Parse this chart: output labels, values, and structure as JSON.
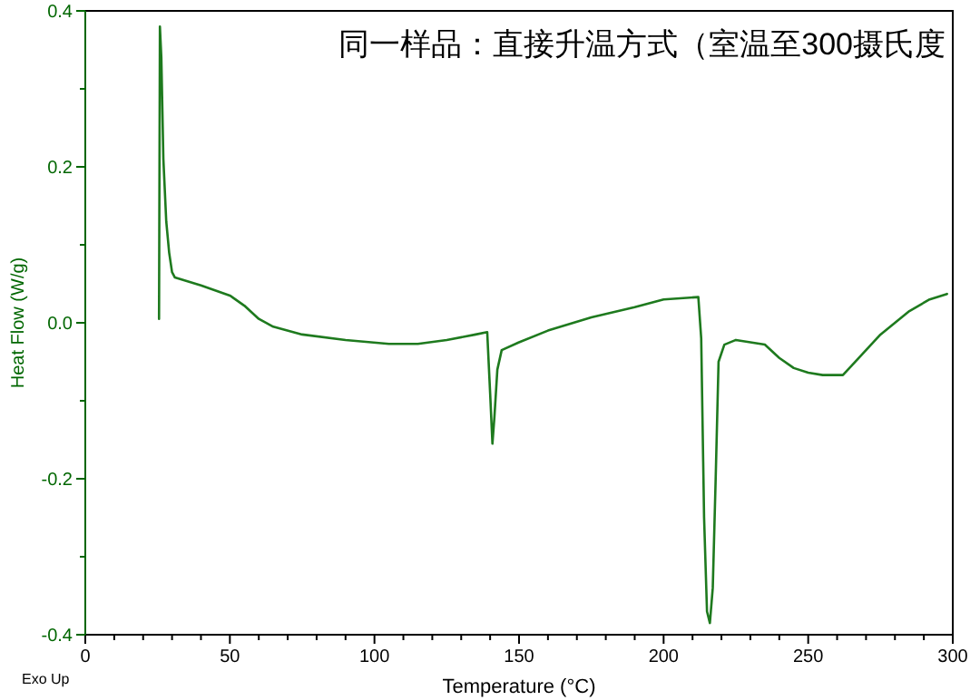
{
  "chart_data": {
    "type": "line",
    "title": "同一样品：直接升温方式（室温至300摄氏度",
    "xlabel": "Temperature (°C)",
    "ylabel": "Heat Flow (W/g)",
    "annotations": [
      "Exo Up"
    ],
    "xlim": [
      0,
      300
    ],
    "ylim": [
      -0.4,
      0.4
    ],
    "xticks": [
      0,
      {
        "value": 10,
        "label": null
      },
      {
        "value": 20,
        "label": null
      },
      {
        "value": 30,
        "label": null
      },
      {
        "value": 40,
        "label": null
      },
      50,
      {
        "value": 60,
        "label": null
      },
      {
        "value": 70,
        "label": null
      },
      {
        "value": 80,
        "label": null
      },
      {
        "value": 90,
        "label": null
      },
      100,
      {
        "value": 110,
        "label": null
      },
      {
        "value": 120,
        "label": null
      },
      {
        "value": 130,
        "label": null
      },
      {
        "value": 140,
        "label": null
      },
      150,
      {
        "value": 160,
        "label": null
      },
      {
        "value": 170,
        "label": null
      },
      {
        "value": 180,
        "label": null
      },
      {
        "value": 190,
        "label": null
      },
      200,
      {
        "value": 210,
        "label": null
      },
      {
        "value": 220,
        "label": null
      },
      {
        "value": 230,
        "label": null
      },
      {
        "value": 240,
        "label": null
      },
      250,
      {
        "value": 260,
        "label": null
      },
      {
        "value": 270,
        "label": null
      },
      {
        "value": 280,
        "label": null
      },
      {
        "value": 290,
        "label": null
      },
      300
    ],
    "yticks": [
      {
        "value": -0.4,
        "label": "-0.4"
      },
      {
        "value": -0.3,
        "label": null
      },
      {
        "value": -0.2,
        "label": "-0.2"
      },
      {
        "value": -0.1,
        "label": null
      },
      {
        "value": 0,
        "label": "0.0"
      },
      {
        "value": 0.1,
        "label": null
      },
      {
        "value": 0.2,
        "label": "0.2"
      },
      {
        "value": 0.3,
        "label": null
      },
      {
        "value": 0.4,
        "label": "0.4"
      }
    ],
    "grid": false,
    "marker": "none",
    "line_style": "solid",
    "series": [
      {
        "color": "#1e7a1e",
        "x": [
          25.5,
          25.8,
          26.3,
          27,
          28,
          29,
          30,
          31,
          40,
          50,
          55,
          60,
          65,
          75,
          90,
          105,
          115,
          125,
          135,
          139,
          140,
          140.8,
          141.5,
          142.5,
          144,
          150,
          160,
          175,
          190,
          200,
          212,
          213,
          214,
          215,
          216,
          217,
          218,
          219,
          221,
          225,
          235,
          240,
          245,
          250,
          255,
          262,
          265,
          275,
          285,
          292,
          298
        ],
        "values": [
          0.005,
          0.38,
          0.34,
          0.21,
          0.13,
          0.09,
          0.065,
          0.058,
          0.048,
          0.035,
          0.022,
          0.005,
          -0.005,
          -0.015,
          -0.022,
          -0.027,
          -0.027,
          -0.022,
          -0.015,
          -0.012,
          -0.09,
          -0.155,
          -0.12,
          -0.06,
          -0.035,
          -0.025,
          -0.01,
          0.007,
          0.02,
          0.03,
          0.033,
          -0.02,
          -0.25,
          -0.37,
          -0.385,
          -0.34,
          -0.2,
          -0.05,
          -0.028,
          -0.022,
          -0.028,
          -0.045,
          -0.058,
          -0.064,
          -0.067,
          -0.067,
          -0.055,
          -0.015,
          0.015,
          0.03,
          0.037
        ]
      }
    ]
  }
}
